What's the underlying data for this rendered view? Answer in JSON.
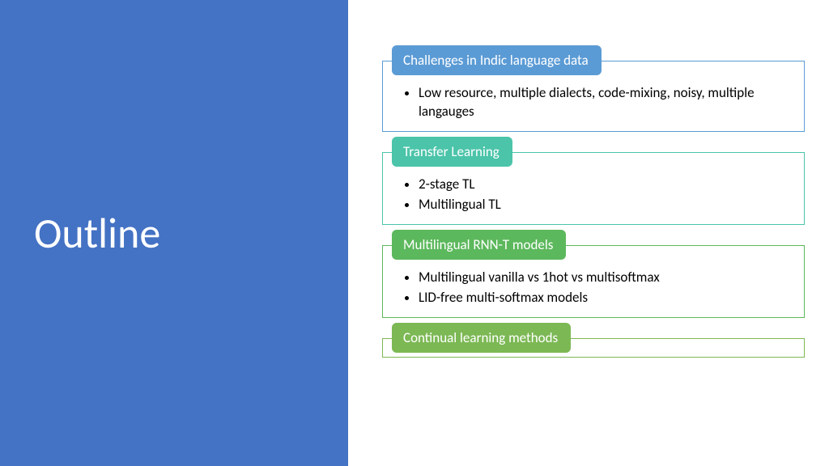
{
  "slide": {
    "title": "Outline",
    "layout": "two-column",
    "left_panel_color": "#4472c4",
    "title_color": "#ffffff",
    "title_fontsize": 52,
    "title_fontweight": 300,
    "body_fontsize": 17,
    "tab_fontsize": 17,
    "sections": [
      {
        "heading": "Challenges in Indic language data",
        "tab_color": "#5b9bd5",
        "border_color": "#5b9bd5",
        "bullets": [
          "Low resource, multiple dialects, code-mixing, noisy, multiple langauges"
        ]
      },
      {
        "heading": "Transfer Learning",
        "tab_color": "#4bc4a9",
        "border_color": "#4bc4a9",
        "bullets": [
          "2-stage TL",
          "Multilingual TL"
        ]
      },
      {
        "heading": "Multilingual RNN-T models",
        "tab_color": "#5cb85c",
        "border_color": "#5cb85c",
        "bullets": [
          "Multilingual vanilla vs 1hot vs multisoftmax",
          "LID-free multi-softmax models"
        ]
      },
      {
        "heading": "Continual learning methods",
        "tab_color": "#7cb854",
        "border_color": "#7cb854",
        "bullets": []
      }
    ]
  }
}
